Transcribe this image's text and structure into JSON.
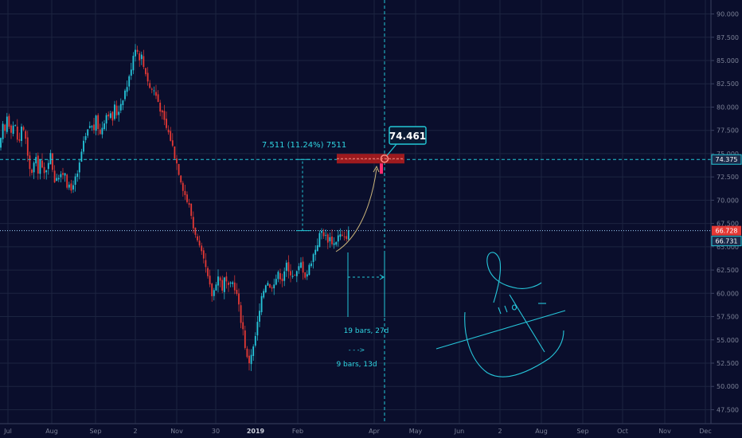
{
  "colors": {
    "background": "#0a0e2c",
    "grid": "#1c2440",
    "bullish": "#26c6da",
    "bearish": "#e53935",
    "crosshair": "#22c7d6",
    "last_price_line": "#9fd4ff",
    "axis_text": "#7b8196",
    "annotation_text": "#2fd5e2",
    "target_zone": "#b71c1c",
    "forecast_curve": "#c9b37a"
  },
  "chart_data": {
    "type": "candlestick",
    "title": "",
    "xlabel": "",
    "ylabel": "",
    "ylim": [
      46.0,
      91.5
    ],
    "grid": true,
    "y_ticks": [
      "47.500",
      "50.000",
      "52.500",
      "55.000",
      "57.500",
      "60.000",
      "62.500",
      "65.000",
      "67.500",
      "70.000",
      "72.500",
      "75.000",
      "77.500",
      "80.000",
      "82.500",
      "85.000",
      "87.500",
      "90.000"
    ],
    "x_ticks": [
      "Jul",
      "Aug",
      "Sep",
      "2",
      "Nov",
      "30",
      "2019",
      "Feb",
      "Apr",
      "May",
      "Jun",
      "2",
      "Aug",
      "Sep",
      "Oct",
      "Nov",
      "Dec"
    ],
    "bold_x_tick": "2019",
    "close_path": [
      [
        0,
        75.5
      ],
      [
        3,
        78.0
      ],
      [
        6,
        77.2
      ],
      [
        9,
        79.2
      ],
      [
        12,
        78.0
      ],
      [
        15,
        77.5
      ],
      [
        18,
        78.6
      ],
      [
        21,
        76.8
      ],
      [
        24,
        76.0
      ],
      [
        27,
        78.0
      ],
      [
        30,
        77.6
      ],
      [
        33,
        76.0
      ],
      [
        36,
        73.5
      ],
      [
        39,
        72.8
      ],
      [
        42,
        73.8
      ],
      [
        45,
        74.3
      ],
      [
        48,
        73.2
      ],
      [
        51,
        74.6
      ],
      [
        54,
        72.5
      ],
      [
        57,
        73.0
      ],
      [
        60,
        74.2
      ],
      [
        63,
        75.0
      ],
      [
        66,
        73.5
      ],
      [
        69,
        72.0
      ],
      [
        72,
        73.0
      ],
      [
        75,
        72.2
      ],
      [
        78,
        72.6
      ],
      [
        81,
        73.5
      ],
      [
        84,
        71.8
      ],
      [
        87,
        71.2
      ],
      [
        90,
        71.0
      ],
      [
        93,
        72.5
      ],
      [
        96,
        72.0
      ],
      [
        99,
        73.4
      ],
      [
        102,
        75.0
      ],
      [
        105,
        76.0
      ],
      [
        108,
        76.8
      ],
      [
        111,
        77.5
      ],
      [
        114,
        78.4
      ],
      [
        117,
        77.2
      ],
      [
        120,
        78.8
      ],
      [
        123,
        78.0
      ],
      [
        126,
        77.0
      ],
      [
        129,
        78.2
      ],
      [
        132,
        78.9
      ],
      [
        135,
        79.6
      ],
      [
        138,
        79.2
      ],
      [
        141,
        78.5
      ],
      [
        144,
        80.0
      ],
      [
        147,
        79.2
      ],
      [
        150,
        80.0
      ],
      [
        153,
        80.8
      ],
      [
        156,
        81.5
      ],
      [
        159,
        82.2
      ],
      [
        162,
        83.0
      ],
      [
        165,
        84.5
      ],
      [
        168,
        86.0
      ],
      [
        171,
        86.8
      ],
      [
        174,
        85.2
      ],
      [
        177,
        85.8
      ],
      [
        180,
        84.5
      ],
      [
        183,
        83.8
      ],
      [
        186,
        82.8
      ],
      [
        189,
        81.8
      ],
      [
        192,
        82.0
      ],
      [
        195,
        81.5
      ],
      [
        198,
        80.8
      ],
      [
        201,
        80.0
      ],
      [
        204,
        79.0
      ],
      [
        207,
        78.2
      ],
      [
        210,
        77.5
      ],
      [
        213,
        77.0
      ],
      [
        216,
        76.0
      ],
      [
        219,
        75.0
      ],
      [
        222,
        74.0
      ],
      [
        225,
        73.0
      ],
      [
        228,
        72.0
      ],
      [
        231,
        71.0
      ],
      [
        234,
        70.2
      ],
      [
        237,
        69.5
      ],
      [
        240,
        68.5
      ],
      [
        243,
        67.0
      ],
      [
        246,
        66.5
      ],
      [
        249,
        65.0
      ],
      [
        252,
        64.5
      ],
      [
        255,
        63.5
      ],
      [
        258,
        62.8
      ],
      [
        261,
        61.5
      ],
      [
        264,
        60.5
      ],
      [
        267,
        59.6
      ],
      [
        270,
        60.8
      ],
      [
        273,
        62.0
      ],
      [
        276,
        61.5
      ],
      [
        279,
        60.5
      ],
      [
        282,
        61.5
      ],
      [
        285,
        61.0
      ],
      [
        288,
        60.2
      ],
      [
        291,
        61.2
      ],
      [
        294,
        61.0
      ],
      [
        297,
        60.0
      ],
      [
        300,
        58.5
      ],
      [
        303,
        57.0
      ],
      [
        306,
        55.8
      ],
      [
        309,
        53.5
      ],
      [
        312,
        52.3
      ],
      [
        315,
        53.5
      ],
      [
        318,
        54.0
      ],
      [
        321,
        55.5
      ],
      [
        324,
        57.0
      ],
      [
        327,
        58.5
      ],
      [
        330,
        60.0
      ],
      [
        333,
        61.0
      ],
      [
        336,
        61.5
      ],
      [
        339,
        60.5
      ],
      [
        342,
        61.0
      ],
      [
        345,
        61.5
      ],
      [
        348,
        61.8
      ],
      [
        351,
        62.2
      ],
      [
        354,
        61.4
      ],
      [
        357,
        62.5
      ],
      [
        360,
        63.0
      ],
      [
        363,
        62.0
      ],
      [
        366,
        62.5
      ],
      [
        369,
        61.8
      ],
      [
        372,
        62.0
      ],
      [
        375,
        62.6
      ],
      [
        378,
        63.2
      ],
      [
        381,
        62.5
      ],
      [
        384,
        61.8
      ],
      [
        387,
        62.4
      ],
      [
        390,
        63.4
      ],
      [
        393,
        64.0
      ],
      [
        396,
        64.8
      ],
      [
        399,
        65.5
      ],
      [
        402,
        66.4
      ],
      [
        405,
        66.8
      ],
      [
        408,
        66.2
      ],
      [
        411,
        65.8
      ],
      [
        414,
        66.0
      ],
      [
        417,
        65.6
      ],
      [
        420,
        65.3
      ],
      [
        423,
        65.9
      ],
      [
        426,
        66.3
      ],
      [
        429,
        66.1
      ],
      [
        432,
        65.7
      ],
      [
        435,
        66.2
      ],
      [
        438,
        66.73
      ]
    ],
    "last_price": 66.731,
    "current_price": 66.728,
    "target_price": 74.461,
    "crosshair_price": 74.375,
    "crosshair_x_date": "Apr",
    "price_range_label": "7.511 (11.24%) 7511",
    "bars_range_label": "19 bars, 27d",
    "projection_label": "9 bars, 13d",
    "projection_arrow": "- - ->"
  }
}
